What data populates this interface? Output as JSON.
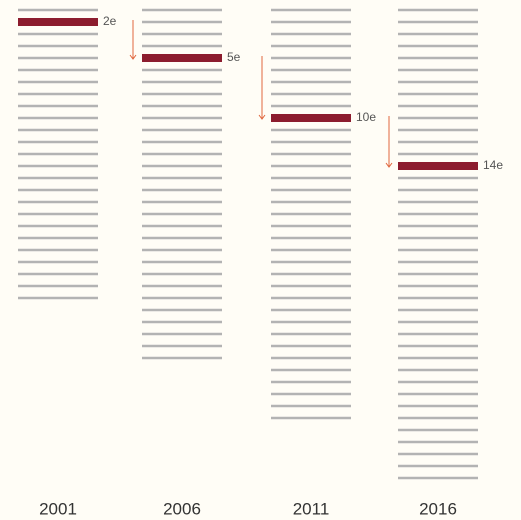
{
  "chart_data": {
    "type": "rank",
    "categories": [
      "2001",
      "2006",
      "2011",
      "2016"
    ],
    "values": [
      2,
      5,
      10,
      14
    ],
    "value_labels": [
      "2e",
      "5e",
      "10e",
      "14e"
    ],
    "totals": [
      25,
      30,
      35,
      40
    ],
    "color": "#8c1c2e",
    "line_color": "#b3b3b3",
    "arrow_color": "#e0663d"
  }
}
